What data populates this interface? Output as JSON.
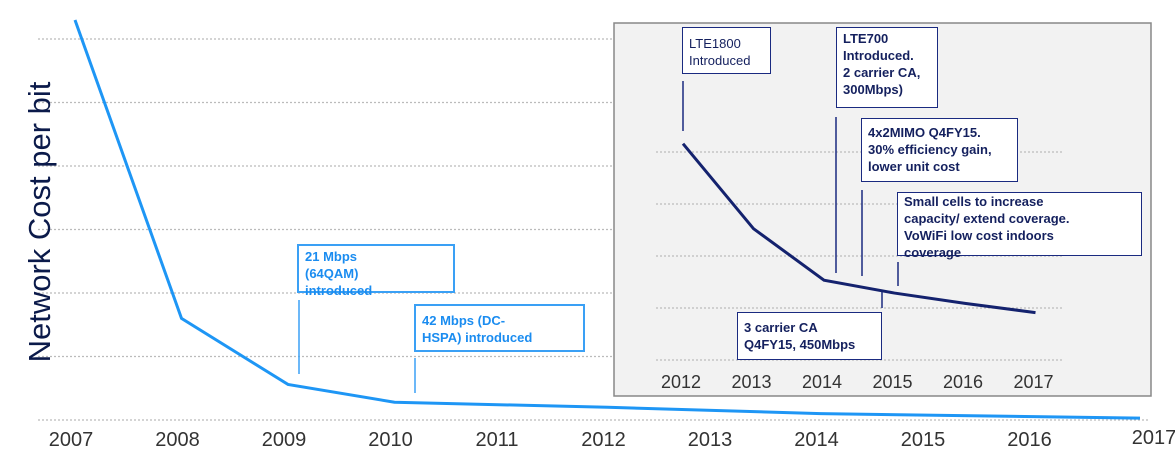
{
  "chart_data": [
    {
      "type": "line",
      "ylabel": "Network Cost per bit",
      "xlabel": "",
      "title": "",
      "x": [
        2007,
        2008,
        2009,
        2010,
        2012,
        2014,
        2017
      ],
      "y": [
        6.3,
        1.6,
        0.56,
        0.28,
        0.2,
        0.1,
        0.03
      ],
      "xlim": [
        2007,
        2017
      ],
      "ylim": [
        0,
        6
      ],
      "y_units": "relative (no tick labels printed)",
      "grid": "horizontal dotted",
      "tick_labels_x": [
        "2007",
        "2008",
        "2009",
        "2010",
        "2011",
        "2012",
        "2013",
        "2014",
        "2015",
        "2016",
        "2017"
      ],
      "color": "#1e96f5",
      "annotations": [
        {
          "text": "21 Mbps\n(64QAM)\nintroduced",
          "x": 2009.1
        },
        {
          "text": "42 Mbps (DC-\nHSPA) introduced",
          "x": 2010.15
        }
      ]
    },
    {
      "type": "line",
      "title": "",
      "x": [
        2012,
        2013,
        2014,
        2015,
        2016,
        2017
      ],
      "y": [
        4.2,
        2.55,
        1.55,
        1.3,
        1.1,
        0.92
      ],
      "xlim": [
        2012,
        2017
      ],
      "ylim": [
        0,
        4
      ],
      "grid": "horizontal dotted",
      "background": "#f2f2f2",
      "tick_labels_x": [
        "2012",
        "2013",
        "2014",
        "2015",
        "2016",
        "2017"
      ],
      "color": "#14226e",
      "annotations": [
        {
          "text": "LTE1800\nIntroduced",
          "x": 2012.0
        },
        {
          "text": "LTE700\nIntroduced.\n2 carrier CA,\n300Mbps)",
          "x": 2014.2
        },
        {
          "text": "4x2MIMO Q4FY15.\n30% efficiency gain,\nlower unit cost",
          "x": 2014.55
        },
        {
          "text": "Small cells to increase\ncapacity/ extend coverage.\nVoWiFi low cost indoors\ncoverage",
          "x": 2015.05
        },
        {
          "text": "3 carrier CA\nQ4FY15, 450Mbps",
          "x": 2014.85
        }
      ]
    }
  ]
}
